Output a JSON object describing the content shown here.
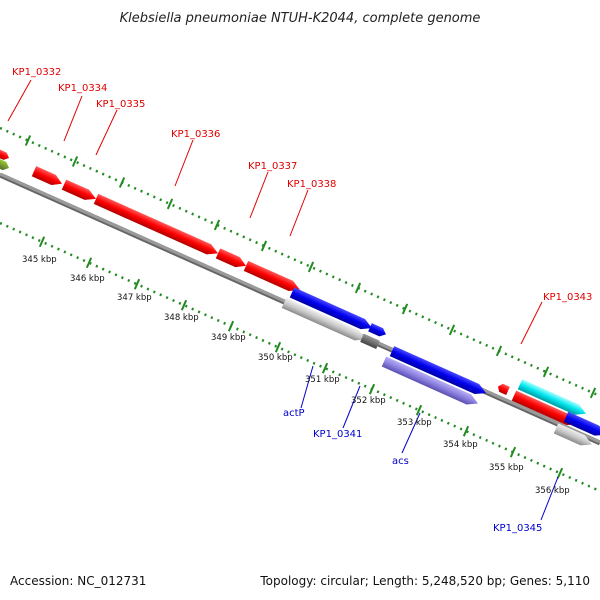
{
  "title": "Klebsiella pneumoniae NTUH-K2044, complete genome",
  "footer": {
    "accession": "Accession: NC_012731",
    "topology": "Topology: circular; Length: 5,248,520 bp; Genes: 5,110"
  },
  "scale_labels": [
    "345 kbp",
    "346 kbp",
    "347 kbp",
    "348 kbp",
    "349 kbp",
    "350 kbp",
    "351 kbp",
    "352 kbp",
    "353 kbp",
    "354 kbp",
    "355 kbp",
    "356 kbp"
  ],
  "gene_labels_top": [
    "KP1_0332",
    "KP1_0334",
    "KP1_0335",
    "KP1_0336",
    "KP1_0337",
    "KP1_0338",
    "KP1_0343"
  ],
  "gene_labels_bottom": [
    "actP",
    "KP1_0341",
    "acs",
    "KP1_0345"
  ],
  "colors": {
    "background": "#ffffff",
    "axis": "#808080",
    "forward_gene": "#ff0000",
    "reverse_gene": "#0000ee",
    "rna": "#9b8fe0",
    "pseudo": "#c8c8c8",
    "cyan_gene": "#00e5ee",
    "olive_gene": "#6b8e23",
    "tick": "#228b22",
    "label_red": "#e00000",
    "label_blue": "#0000cc"
  }
}
